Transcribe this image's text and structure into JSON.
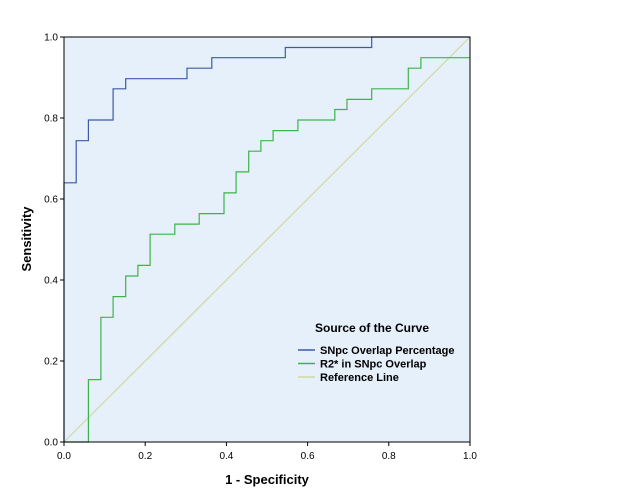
{
  "chart_data": {
    "type": "line",
    "title": "",
    "xlabel": "1 - Specificity",
    "ylabel": "Sensitivity",
    "xlim": [
      0,
      1
    ],
    "ylim": [
      0,
      1
    ],
    "x_ticks": [
      "0.0",
      "0.2",
      "0.4",
      "0.6",
      "0.8",
      "1.0"
    ],
    "y_ticks": [
      "0.0",
      "0.2",
      "0.4",
      "0.6",
      "0.8",
      "1.0"
    ],
    "grid": false,
    "plot_background": "#e6f0fa",
    "legend": {
      "title": "Source of the Curve",
      "placement": "bottom-right-inside"
    },
    "series": [
      {
        "name": "SNpc Overlap Percentage",
        "color": "#3c5aa8",
        "step": true,
        "points": [
          [
            0,
            0
          ],
          [
            0,
            0.64
          ],
          [
            0.03,
            0.64
          ],
          [
            0.03,
            0.744
          ],
          [
            0.06,
            0.744
          ],
          [
            0.06,
            0.795
          ],
          [
            0.121,
            0.795
          ],
          [
            0.121,
            0.872
          ],
          [
            0.152,
            0.872
          ],
          [
            0.152,
            0.897
          ],
          [
            0.303,
            0.897
          ],
          [
            0.303,
            0.923
          ],
          [
            0.364,
            0.923
          ],
          [
            0.364,
            0.949
          ],
          [
            0.545,
            0.949
          ],
          [
            0.545,
            0.974
          ],
          [
            0.758,
            0.974
          ],
          [
            0.758,
            1.0
          ],
          [
            1.0,
            1.0
          ]
        ]
      },
      {
        "name": "R2* in SNpc Overlap",
        "color": "#3cb44b",
        "step": true,
        "points": [
          [
            0,
            0
          ],
          [
            0.06,
            0
          ],
          [
            0.06,
            0.154
          ],
          [
            0.091,
            0.154
          ],
          [
            0.091,
            0.308
          ],
          [
            0.121,
            0.308
          ],
          [
            0.121,
            0.359
          ],
          [
            0.152,
            0.359
          ],
          [
            0.152,
            0.41
          ],
          [
            0.182,
            0.41
          ],
          [
            0.182,
            0.436
          ],
          [
            0.212,
            0.436
          ],
          [
            0.212,
            0.513
          ],
          [
            0.273,
            0.513
          ],
          [
            0.273,
            0.538
          ],
          [
            0.333,
            0.538
          ],
          [
            0.333,
            0.564
          ],
          [
            0.394,
            0.564
          ],
          [
            0.394,
            0.615
          ],
          [
            0.424,
            0.615
          ],
          [
            0.424,
            0.667
          ],
          [
            0.455,
            0.667
          ],
          [
            0.455,
            0.718
          ],
          [
            0.485,
            0.718
          ],
          [
            0.485,
            0.744
          ],
          [
            0.515,
            0.744
          ],
          [
            0.515,
            0.769
          ],
          [
            0.576,
            0.769
          ],
          [
            0.576,
            0.795
          ],
          [
            0.667,
            0.795
          ],
          [
            0.667,
            0.821
          ],
          [
            0.697,
            0.821
          ],
          [
            0.697,
            0.846
          ],
          [
            0.758,
            0.846
          ],
          [
            0.758,
            0.872
          ],
          [
            0.848,
            0.872
          ],
          [
            0.848,
            0.923
          ],
          [
            0.879,
            0.923
          ],
          [
            0.879,
            0.949
          ],
          [
            1.0,
            0.949
          ]
        ]
      },
      {
        "name": "Reference Line",
        "color": "#d2d8a0",
        "step": false,
        "points": [
          [
            0,
            0
          ],
          [
            1,
            1
          ]
        ]
      }
    ]
  }
}
